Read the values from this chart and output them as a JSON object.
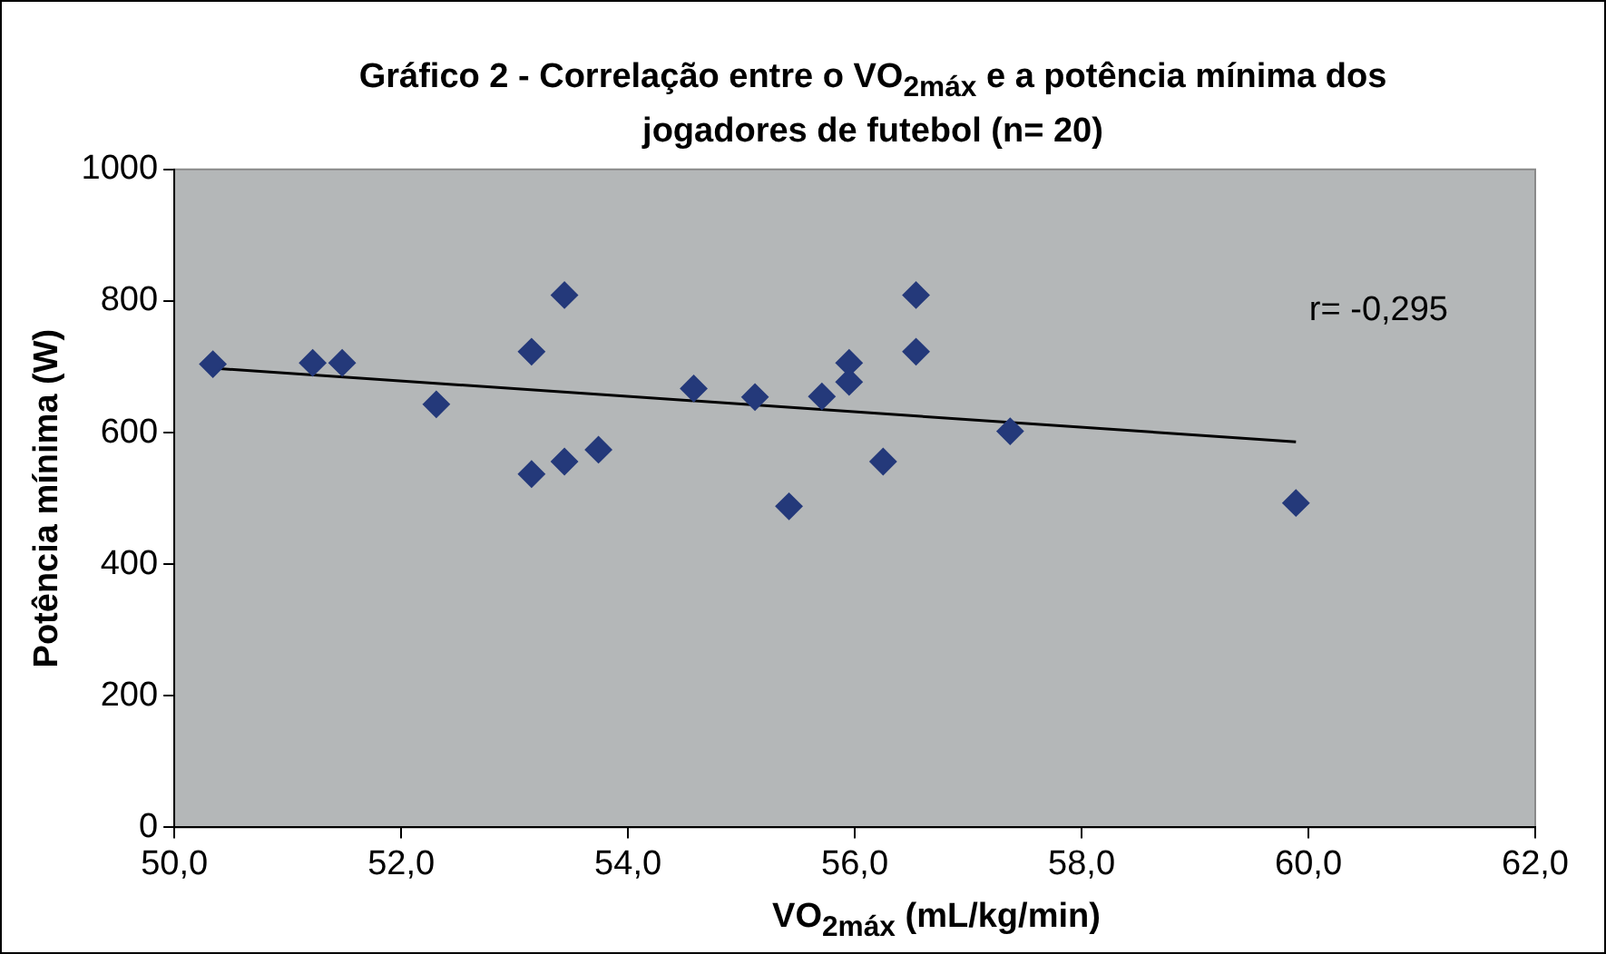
{
  "chart_data": {
    "type": "scatter",
    "title": "Gráfico 2 - Correlação entre o VO$_{2máx}$ e a potência mínima dos jogadores de futebol (n= 20)",
    "xlabel": "VO$_{2máx}$ (mL/kg/min)",
    "ylabel": "Potência mínima (W)",
    "annotations": [
      "r= -0,295"
    ],
    "marker": "diamond",
    "legend": false,
    "xlim": [
      50,
      62
    ],
    "xticks": [
      {
        "value": 50,
        "label": "50,0"
      },
      {
        "value": 52,
        "label": "52,0"
      },
      {
        "value": 54,
        "label": "54,0"
      },
      {
        "value": 56,
        "label": "56,0"
      },
      {
        "value": 58,
        "label": "58,0"
      },
      {
        "value": 60,
        "label": "60,0"
      },
      {
        "value": 62,
        "label": "62,0"
      }
    ],
    "ylim": [
      0,
      1000
    ],
    "yticks": [
      0,
      200,
      400,
      600,
      800,
      1000
    ],
    "series": [
      {
        "type": "scatter",
        "color": "#24397a",
        "x": [
          50.34,
          51.22,
          51.48,
          52.31,
          53.15,
          53.44,
          53.15,
          53.44,
          53.74,
          54.58,
          55.12,
          55.42,
          55.71,
          55.95,
          55.95,
          56.54,
          56.54,
          56.25,
          57.37,
          59.89
        ],
        "values": [
          704,
          706,
          706,
          643,
          723,
          809,
          537,
          556,
          574,
          667,
          654,
          488,
          655,
          706,
          677,
          809,
          723,
          556,
          602,
          493
        ]
      },
      {
        "type": "line",
        "color": "#000000",
        "marker": "none",
        "x": [
          50.34,
          59.89
        ],
        "values": [
          698,
          586
        ]
      }
    ]
  }
}
